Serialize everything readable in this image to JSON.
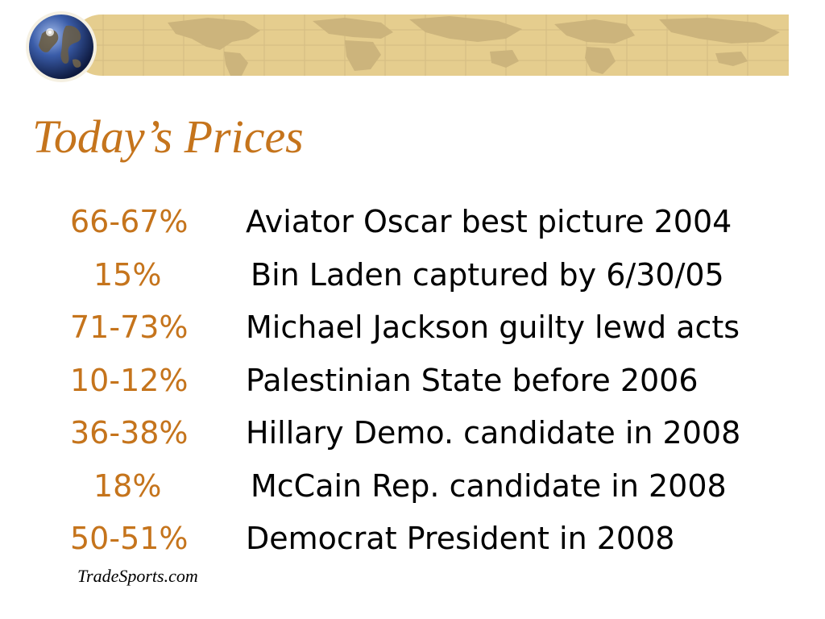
{
  "slide": {
    "title": "Today’s Prices",
    "source": "TradeSports.com",
    "colors": {
      "accent": "#c5741c",
      "banner": "#e5cd8e",
      "banner_map": "#ccb47c",
      "text": "#000000"
    },
    "banner_icon": "globe-icon",
    "rows": [
      {
        "price": "66-67%",
        "event": "Aviator Oscar best picture 2004"
      },
      {
        "price": "15%",
        "event": "Bin Laden captured by 6/30/05"
      },
      {
        "price": "71-73%",
        "event": "Michael Jackson guilty lewd acts"
      },
      {
        "price": "10-12%",
        "event": "Palestinian State before 2006"
      },
      {
        "price": "36-38%",
        "event": "Hillary Demo. candidate in 2008"
      },
      {
        "price": "18%",
        "event": "McCain Rep. candidate in 2008"
      },
      {
        "price": "50-51%",
        "event": "Democrat President in 2008"
      }
    ]
  }
}
